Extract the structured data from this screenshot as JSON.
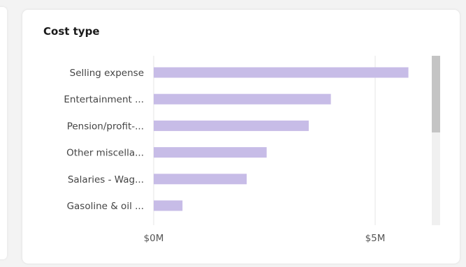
{
  "card": {
    "title": "Cost type"
  },
  "colors": {
    "bar": "#c7bce7",
    "gridline": "#e6e6e6"
  },
  "chart_data": {
    "type": "bar",
    "orientation": "horizontal",
    "title": "Cost type",
    "categories": [
      "Selling expense",
      "Entertainment ...",
      "Pension/profit-...",
      "Other miscella...",
      "Salaries - Wag...",
      "Gasoline & oil ..."
    ],
    "values": [
      5.75,
      4.0,
      3.5,
      2.55,
      2.1,
      0.65
    ],
    "xlim": [
      0,
      6.3
    ],
    "x_ticks": [
      {
        "value": 0,
        "label": "$0M"
      },
      {
        "value": 5,
        "label": "$5M"
      }
    ],
    "grid": true,
    "scrollbar": true
  }
}
